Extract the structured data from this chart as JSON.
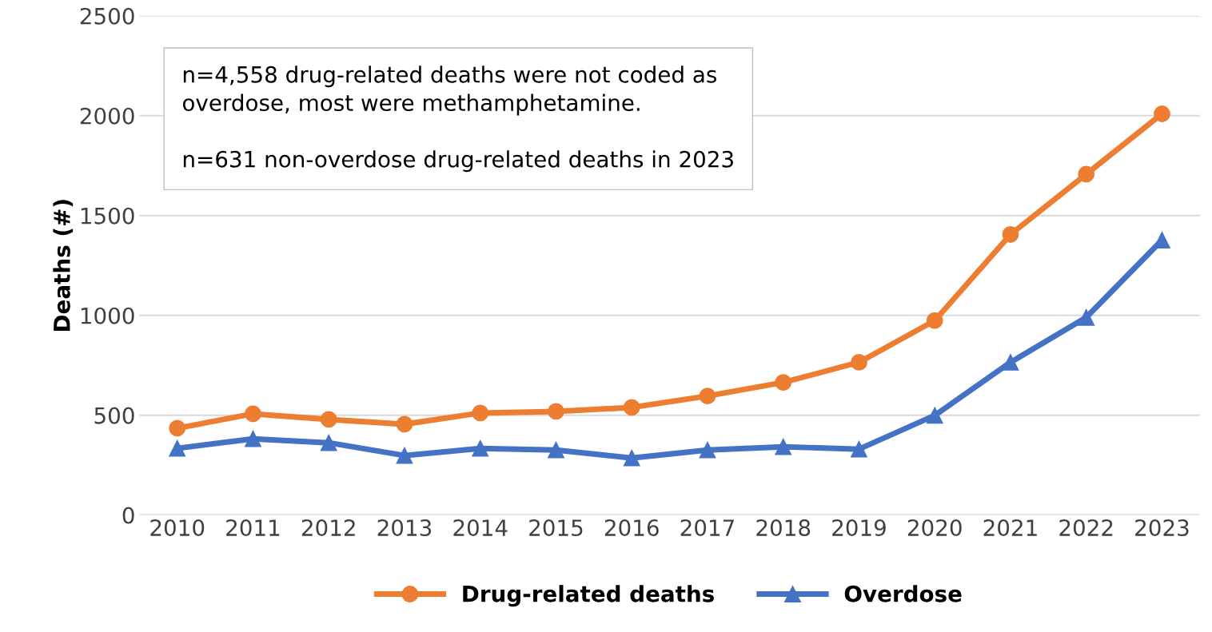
{
  "chart_data": {
    "type": "line",
    "ylabel": "Deaths (#)",
    "categories": [
      "2010",
      "2011",
      "2012",
      "2013",
      "2014",
      "2015",
      "2016",
      "2017",
      "2018",
      "2019",
      "2020",
      "2021",
      "2022",
      "2023"
    ],
    "series": [
      {
        "name": "Drug-related deaths",
        "color": "#ed7d31",
        "marker": "circle",
        "values": [
          435,
          507,
          479,
          455,
          511,
          519,
          539,
          596,
          664,
          765,
          974,
          1405,
          1707,
          2009
        ]
      },
      {
        "name": "Overdose",
        "color": "#4472c4",
        "marker": "triangle",
        "values": [
          334,
          382,
          362,
          298,
          334,
          326,
          286,
          326,
          342,
          330,
          499,
          765,
          990,
          1377
        ]
      }
    ],
    "ylim": [
      0,
      2500
    ],
    "yticks": [
      0,
      500,
      1000,
      1500,
      2000,
      2500
    ],
    "grid": "y",
    "legend": "bottom",
    "annotations": [
      "n=4,558 drug-related deaths were not coded as\noverdose, most were methamphetamine.\n\nn=631 non-overdose drug-related deaths in 2023"
    ]
  }
}
